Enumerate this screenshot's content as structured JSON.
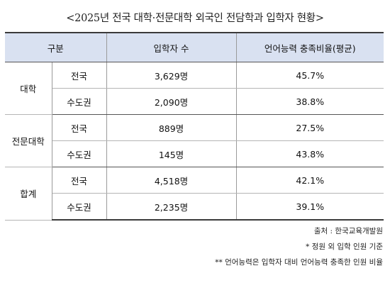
{
  "title": "<2025년 전국 대학·전문대학 외국인 전담학과 입학자 현황>",
  "table": {
    "headers": [
      "구분",
      "입학자 수",
      "언어능력 충족비율(평균)"
    ],
    "groups": [
      {
        "name": "대학",
        "rows": [
          {
            "region": "전국",
            "admitted": "3,629명",
            "ratio": "45.7%"
          },
          {
            "region": "수도권",
            "admitted": "2,090명",
            "ratio": "38.8%"
          }
        ]
      },
      {
        "name": "전문대학",
        "rows": [
          {
            "region": "전국",
            "admitted": "889명",
            "ratio": "27.5%"
          },
          {
            "region": "수도권",
            "admitted": "145명",
            "ratio": "43.8%"
          }
        ]
      },
      {
        "name": "합계",
        "rows": [
          {
            "region": "전국",
            "admitted": "4,518명",
            "ratio": "42.1%"
          },
          {
            "region": "수도권",
            "admitted": "2,235명",
            "ratio": "39.1%"
          }
        ]
      }
    ]
  },
  "notes": {
    "source": "출처 : 한국교육개발원",
    "note1": "* 정원 외 입학 인원 기준",
    "note2": "** 언어능력은 입학자 대비 언어능력 충족한 인원 비율"
  },
  "colors": {
    "header_background": "#d9e1f1"
  }
}
